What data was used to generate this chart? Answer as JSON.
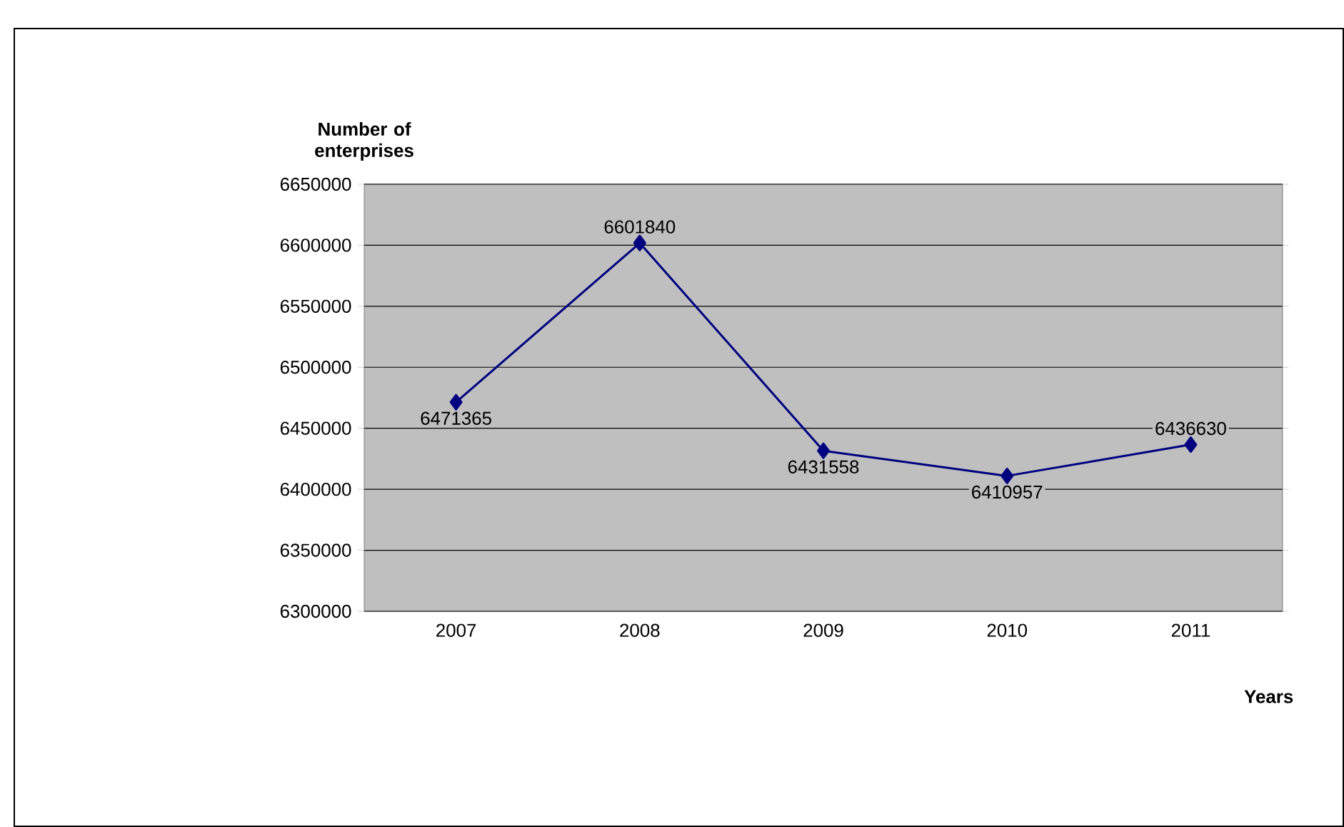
{
  "chart_data": {
    "type": "line",
    "xlabel": "Years",
    "ylabel": "Number of enterprises",
    "categories": [
      "2007",
      "2008",
      "2009",
      "2010",
      "2011"
    ],
    "values": [
      6471365,
      6601840,
      6431558,
      6410957,
      6436630
    ],
    "color": "#000080",
    "marker": "diamond",
    "data_labels": true,
    "grid": "y",
    "ylim": [
      6300000,
      6650000
    ],
    "yticks": [
      6300000,
      6350000,
      6400000,
      6450000,
      6500000,
      6550000,
      6600000,
      6650000
    ]
  }
}
